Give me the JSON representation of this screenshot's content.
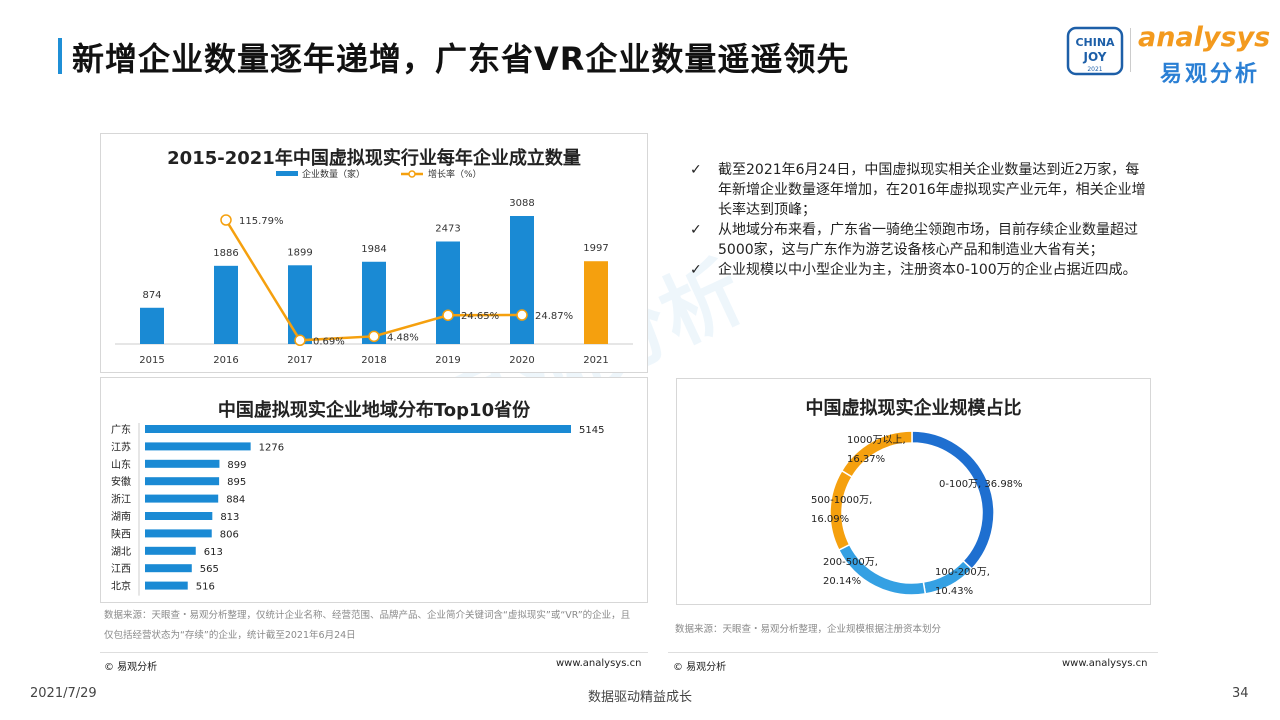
{
  "page_title": "新增企业数量逐年递增，广东省VR企业数量遥遥领先",
  "logos": {
    "chinajoy_top": "CHINA",
    "chinajoy_bottom": "JOY",
    "chinajoy_year": "2021",
    "analysys": "analysys",
    "analysys_cn": "易观分析"
  },
  "watermark": "易观分析",
  "bullets": [
    "截至2021年6月24日，中国虚拟现实相关企业数量达到近2万家，每年新增企业数量逐年增加，在2016年虚拟现实产业元年，相关企业增长率达到顶峰；",
    "从地域分布来看，广东省一骑绝尘领跑市场，目前存续企业数量超过5000家，这与广东作为游艺设备核心产品和制造业大省有关；",
    "企业规模以中小型企业为主，注册资本0-100万的企业占据近四成。"
  ],
  "check_glyph": "✓",
  "sources": {
    "left": "数据来源：天眼查・易观分析整理，仅统计企业名称、经营范围、品牌产品、企业简介关键词含“虚拟现实”或“VR”的企业，且仅包括经营状态为“存续”的企业，统计截至2021年6月24日",
    "right": "数据来源：天眼查・易观分析整理，企业规模根据注册资本划分"
  },
  "footer": {
    "copyright_left": "© 易观分析",
    "url_left": "www.analysys.cn",
    "copyright_right": "© 易观分析",
    "url_right": "www.analysys.cn",
    "date": "2021/7/29",
    "slogan": "数据驱动精益成长",
    "page": "34"
  },
  "colors": {
    "blue": "#1a8ad4",
    "orange": "#f5a00e",
    "donut_dark": "#1e6fd0",
    "donut_light": "#34a0e3"
  },
  "chart_data": [
    {
      "type": "bar",
      "title": "2015-2021年中国虚拟现实行业每年企业成立数量",
      "legend_position": "top",
      "categories": [
        "2015",
        "2016",
        "2017",
        "2018",
        "2019",
        "2020",
        "2021"
      ],
      "series": [
        {
          "name": "企业数量（家）",
          "type": "bar",
          "values": [
            874,
            1886,
            1899,
            1984,
            2473,
            3088,
            1997
          ],
          "highlight_last": true
        },
        {
          "name": "增长率（%）",
          "type": "line",
          "values": [
            null,
            115.79,
            0.69,
            4.48,
            24.65,
            24.87,
            null
          ],
          "labels": [
            "",
            "115.79%",
            "0.69%",
            "4.48%",
            "24.65%",
            "24.87%",
            ""
          ]
        }
      ]
    },
    {
      "type": "bar",
      "orientation": "horizontal",
      "title": "中国虚拟现实企业地域分布Top10省份",
      "categories": [
        "广东",
        "江苏",
        "山东",
        "安徽",
        "浙江",
        "湖南",
        "陕西",
        "湖北",
        "江西",
        "北京"
      ],
      "values": [
        5145,
        1276,
        899,
        895,
        884,
        813,
        806,
        613,
        565,
        516
      ]
    },
    {
      "type": "pie",
      "donut": true,
      "title": "中国虚拟现实企业规模占比",
      "slices": [
        {
          "label": "0-100万",
          "value": 36.98,
          "text": [
            "0-100万, 36.98%"
          ]
        },
        {
          "label": "100-200万",
          "value": 10.43,
          "text": [
            "100-200万,",
            "10.43%"
          ]
        },
        {
          "label": "200-500万",
          "value": 20.14,
          "text": [
            "200-500万,",
            "20.14%"
          ]
        },
        {
          "label": "500-1000万",
          "value": 16.09,
          "text": [
            "500-1000万,",
            "16.09%"
          ]
        },
        {
          "label": "1000万以上",
          "value": 16.37,
          "text": [
            "1000万以上,",
            "16.37%"
          ]
        }
      ]
    }
  ]
}
